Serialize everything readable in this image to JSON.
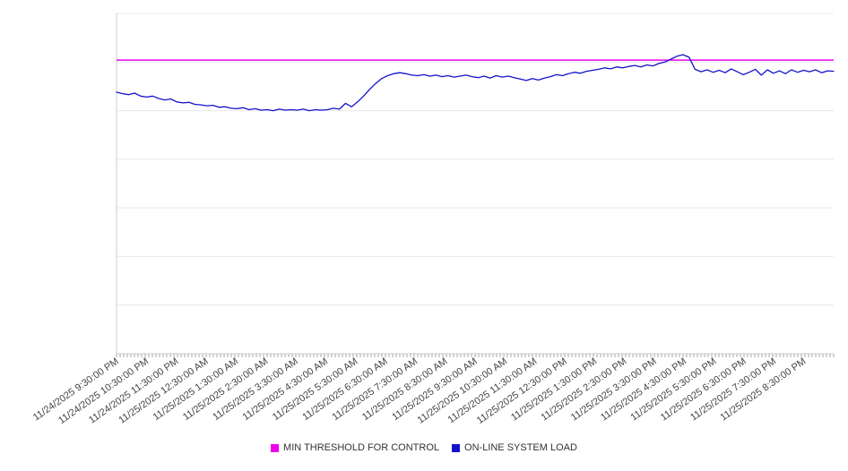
{
  "chart_data": {
    "type": "line",
    "title": "",
    "xlabel": "",
    "ylabel": "",
    "ylim": [
      0,
      7
    ],
    "grid": true,
    "legend_position": "bottom",
    "x_labels": [
      "11/24/2025 9:30:00 PM",
      "11/24/2025 10:30:00 PM",
      "11/24/2025 11:30:00 PM",
      "11/25/2025 12:30:00 AM",
      "11/25/2025 1:30:00 AM",
      "11/25/2025 2:30:00 AM",
      "11/25/2025 3:30:00 AM",
      "11/25/2025 4:30:00 AM",
      "11/25/2025 5:30:00 AM",
      "11/25/2025 6:30:00 AM",
      "11/25/2025 7:30:00 AM",
      "11/25/2025 8:30:00 AM",
      "11/25/2025 9:30:00 AM",
      "11/25/2025 10:30:00 AM",
      "11/25/2025 11:30:00 AM",
      "11/25/2025 12:30:00 PM",
      "11/25/2025 1:30:00 PM",
      "11/25/2025 2:30:00 PM",
      "11/25/2025 3:30:00 PM",
      "11/25/2025 4:30:00 PM",
      "11/25/2025 5:30:00 PM",
      "11/25/2025 6:30:00 PM",
      "11/25/2025 7:30:00 PM",
      "11/25/2025 8:30:00 PM"
    ],
    "series": [
      {
        "name": "MIN THRESHOLD FOR CONTROL",
        "type": "threshold",
        "color": "#ee00ee",
        "value": 6.04
      },
      {
        "name": "ON-LINE SYSTEM LOAD",
        "type": "line",
        "color": "#1313cc",
        "values": [
          5.38,
          5.35,
          5.33,
          5.36,
          5.3,
          5.28,
          5.3,
          5.25,
          5.22,
          5.24,
          5.18,
          5.16,
          5.17,
          5.13,
          5.12,
          5.1,
          5.11,
          5.07,
          5.08,
          5.05,
          5.04,
          5.06,
          5.02,
          5.04,
          5.01,
          5.02,
          5.0,
          5.03,
          5.01,
          5.02,
          5.01,
          5.03,
          5.0,
          5.02,
          5.01,
          5.02,
          5.05,
          5.03,
          5.15,
          5.08,
          5.18,
          5.3,
          5.44,
          5.56,
          5.66,
          5.72,
          5.76,
          5.78,
          5.76,
          5.73,
          5.72,
          5.74,
          5.71,
          5.73,
          5.7,
          5.72,
          5.69,
          5.71,
          5.73,
          5.7,
          5.68,
          5.71,
          5.67,
          5.72,
          5.69,
          5.71,
          5.68,
          5.65,
          5.62,
          5.66,
          5.63,
          5.67,
          5.7,
          5.74,
          5.72,
          5.76,
          5.79,
          5.77,
          5.81,
          5.83,
          5.85,
          5.88,
          5.86,
          5.9,
          5.88,
          5.91,
          5.93,
          5.9,
          5.94,
          5.92,
          5.97,
          6.0,
          6.06,
          6.12,
          6.15,
          6.1,
          5.85,
          5.8,
          5.84,
          5.79,
          5.83,
          5.78,
          5.86,
          5.8,
          5.74,
          5.79,
          5.85,
          5.73,
          5.84,
          5.77,
          5.82,
          5.76,
          5.84,
          5.79,
          5.83,
          5.8,
          5.84,
          5.78,
          5.82,
          5.81
        ]
      }
    ]
  },
  "legend": {
    "items": [
      {
        "label": "MIN THRESHOLD FOR CONTROL",
        "color": "#ee00ee"
      },
      {
        "label": "ON-LINE SYSTEM LOAD",
        "color": "#1313cc"
      }
    ]
  },
  "style": {
    "grid_color": "#e8e8e8",
    "axis_color": "#cccccc",
    "tick_color": "#aaaaaa",
    "label_color": "#444444"
  }
}
